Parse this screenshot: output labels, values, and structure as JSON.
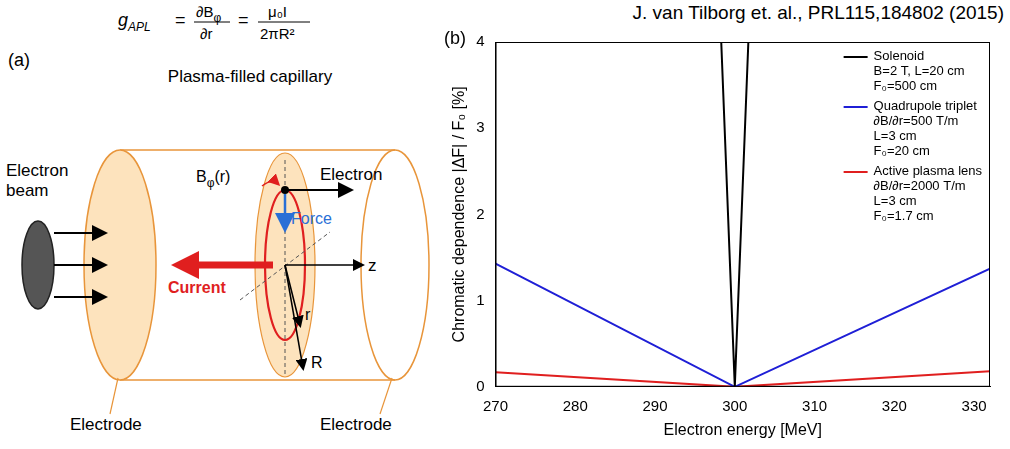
{
  "citation": "J. van Tilborg et. al., PRL115,184802 (2015)",
  "formula": {
    "lhs": "g",
    "lhs_sub": "APL",
    "equals": "=",
    "frac1_num": "∂B",
    "frac1_num_sub": "φ",
    "frac1_den": "∂r",
    "frac2_num": "μ₀I",
    "frac2_den": "2πR²"
  },
  "panel_a": {
    "letter": "(a)",
    "title": "Plasma-filled capillary",
    "beam_label": [
      "Electron",
      "beam"
    ],
    "electron_label": "Electron",
    "field_label": {
      "text": "B",
      "sub": "φ",
      "suffix": "(r)"
    },
    "force_label": "Force",
    "current_label": "Current",
    "z_label": "z",
    "r_label": "r",
    "R_label": "R",
    "electrode_labels": [
      "Electrode",
      "Electrode"
    ]
  },
  "chart_data": {
    "type": "line",
    "letter": "(b)",
    "x_label": "Electron energy [MeV]",
    "y_label": "Chromatic dependence |ΔF| / F₀ [%]",
    "xlim": [
      270,
      332
    ],
    "xticks": [
      270,
      280,
      290,
      300,
      310,
      320,
      330
    ],
    "ylim": [
      0,
      4
    ],
    "yticks": [
      0,
      1,
      2,
      3,
      4
    ],
    "grid": false,
    "legend": "upper right",
    "series": [
      {
        "name": "Solenoid",
        "details": [
          "B=2 T, L=20 cm",
          "F₀=500 cm"
        ],
        "color": "#000000",
        "x": [
          298.3,
          300,
          301.7
        ],
        "values": [
          4,
          0,
          4
        ]
      },
      {
        "name": "Quadrupole triplet",
        "details": [
          "∂B/∂r=500 T/m",
          "L=3 cm",
          "F₀=20 cm"
        ],
        "color": "#1f1fd6",
        "x": [
          270,
          300,
          332
        ],
        "values": [
          1.43,
          0,
          1.37
        ]
      },
      {
        "name": "Active plasma lens",
        "details": [
          "∂B/∂r=2000 T/m",
          "L=3 cm",
          "F₀=1.7 cm"
        ],
        "color": "#e01f1f",
        "x": [
          270,
          300,
          332
        ],
        "values": [
          0.17,
          0,
          0.18
        ]
      }
    ]
  }
}
